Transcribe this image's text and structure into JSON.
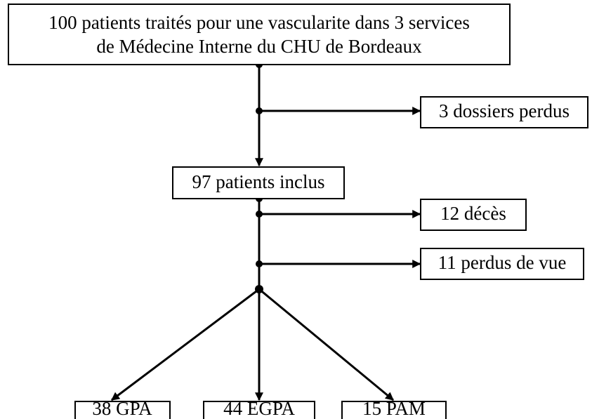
{
  "nodes": [
    {
      "label": "100 patients traités pour une vascularite dans 3 services"
    },
    {
      "label": "de Médecine Interne du CHU de Bordeaux"
    },
    {
      "label": "3 dossiers perdus"
    },
    {
      "label": "97 patients inclus"
    },
    {
      "label": "12 décès"
    },
    {
      "label": "11 perdus de vue"
    },
    {
      "label": "38 GPA"
    },
    {
      "label": "44 EGPA"
    },
    {
      "label": "15 PAM"
    }
  ]
}
